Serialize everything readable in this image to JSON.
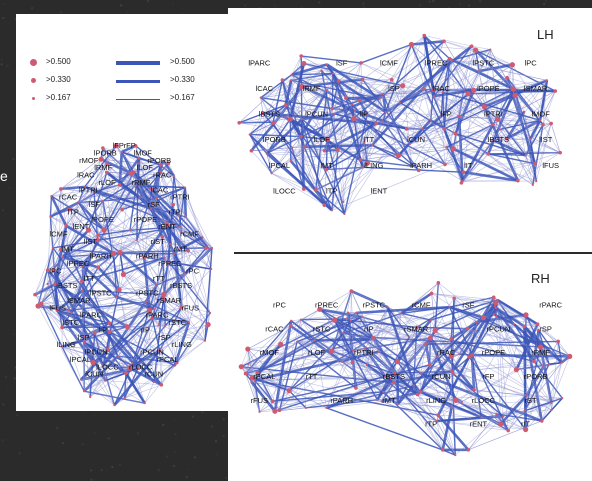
{
  "colors": {
    "node": "#cf5b72",
    "edge": "#3b56b8",
    "edge_light": "#8a90d0",
    "background": "#2b2b2b"
  },
  "hemispheres": {
    "lh": "LH",
    "rh": "RH"
  },
  "side_letter": "e",
  "legend": {
    "node_thresholds": [
      ">0.500",
      ">0.330",
      ">0.167"
    ],
    "edge_thresholds": [
      ">0.500",
      ">0.330",
      ">0.167"
    ]
  },
  "axial_regions": [
    "lFP",
    "rFP",
    "lPORB",
    "lMOF",
    "rMOF",
    "rPORB",
    "lRMF",
    "lLOF",
    "lRAC",
    "rRAC",
    "rLOF",
    "rRMF",
    "lPTRI",
    "lCAC",
    "rCAC",
    "rPTRI",
    "lSF",
    "rSF",
    "lTP",
    "rTP",
    "lPOPE",
    "rPOPE",
    "lENT",
    "rENT",
    "lCMF",
    "rCMF",
    "lIST",
    "rIST",
    "lMT",
    "rMT",
    "lPARH",
    "rPARH",
    "lPREC",
    "rPREC",
    "lPC",
    "rPC",
    "lTT",
    "rTT",
    "lBSTS",
    "rBSTS",
    "lPSTC",
    "rPSTC",
    "lSMAR",
    "rSMAR",
    "lFUS",
    "rFUS",
    "lPARC",
    "rPARC",
    "lSTC",
    "rSTC",
    "lIP",
    "rIP",
    "lSP",
    "rSP",
    "lLING",
    "rLING",
    "lPCUN",
    "rPCUN",
    "lPCAL",
    "rPCAL",
    "lLOCC",
    "rLOCC",
    "lCUN",
    "rCUN"
  ],
  "lh_regions": [
    "lPARC",
    "lSF",
    "lCMF",
    "lPREC",
    "lPSTC",
    "lPC",
    "lCAC",
    "lRMF",
    "lSP",
    "lRAC",
    "lPOPE",
    "lSMAR",
    "lBSTS",
    "lPCUN",
    "lIP",
    "lFP",
    "lPTRI",
    "lMOF",
    "lPORB",
    "lLOF",
    "lTT",
    "lCUN",
    "lBSTS",
    "lIST",
    "lPCAL",
    "lMT",
    "lLING",
    "lPARH",
    "lIT",
    "lFUS",
    "lLOCC",
    "lTP",
    "lENT"
  ],
  "rh_regions": [
    "rPARC",
    "rSF",
    "rCMF",
    "rPSTC",
    "rPREC",
    "rPC",
    "rSP",
    "rPCUN",
    "rSMAR",
    "rIP",
    "rSTC",
    "rCAC",
    "rRMF",
    "rPOPE",
    "rRAC",
    "rPTRI",
    "rLOF",
    "rMOF",
    "rPORB",
    "rFP",
    "rCUN",
    "rBSTS",
    "rTT",
    "rPCAL",
    "rST",
    "rLOCC",
    "rLING",
    "rMT",
    "rPARH",
    "rFUS",
    "rIT",
    "rENT",
    "rTP"
  ]
}
